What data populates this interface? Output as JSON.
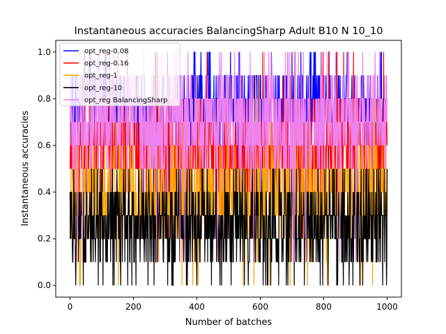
{
  "chart_data": {
    "type": "line",
    "title": "Instantaneous accuracies BalancingSharp Adult B10 N 10_10",
    "xlabel": "Number of batches",
    "ylabel": "Instantaneous accuracies",
    "xlim": [
      -45,
      1045
    ],
    "ylim": [
      -0.05,
      1.05
    ],
    "xticks": [
      0,
      200,
      400,
      600,
      800,
      1000
    ],
    "yticks": [
      0.0,
      0.2,
      0.4,
      0.6,
      0.8,
      1.0
    ],
    "xtick_labels": [
      "0",
      "200",
      "400",
      "600",
      "800",
      "1000"
    ],
    "ytick_labels": [
      "0.0",
      "0.2",
      "0.4",
      "0.6",
      "0.8",
      "1.0"
    ],
    "grid": false,
    "legend_position": "top-left",
    "num_batches": 1000,
    "series": [
      {
        "name": "opt_reg-0.08",
        "color": "#0000ff",
        "mean": 0.77,
        "std": 0.09,
        "min": 0.4,
        "max": 1.0,
        "seed": 11
      },
      {
        "name": "opt_reg-0.16",
        "color": "#ff0000",
        "mean": 0.6,
        "std": 0.11,
        "min": 0.2,
        "max": 1.0,
        "seed": 23
      },
      {
        "name": "opt_reg-1",
        "color": "#ffa500",
        "mean": 0.4,
        "std": 0.11,
        "min": 0.0,
        "max": 0.9,
        "seed": 37
      },
      {
        "name": "opt_reg-10",
        "color": "#000000",
        "mean": 0.26,
        "std": 0.12,
        "min": 0.0,
        "max": 0.5,
        "seed": 51
      },
      {
        "name": "opt_reg BalancingSharp",
        "color": "#ee82ee",
        "mean": 0.7,
        "std": 0.12,
        "min": 0.1,
        "max": 1.0,
        "seed": 71
      }
    ]
  }
}
